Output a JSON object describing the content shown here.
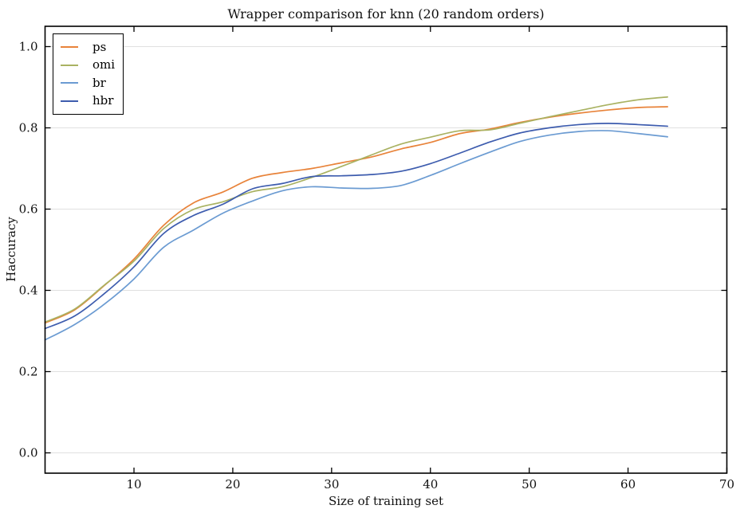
{
  "chart_data": {
    "type": "line",
    "title": "Wrapper comparison for knn (20 random orders)",
    "xlabel": "Size of training set",
    "ylabel": "Haccuracy",
    "xlim": [
      1,
      70
    ],
    "ylim": [
      -0.05,
      1.05
    ],
    "xticks": [
      10,
      20,
      30,
      40,
      50,
      60,
      70
    ],
    "yticks": [
      0.0,
      0.2,
      0.4,
      0.6,
      0.8,
      1.0
    ],
    "grid": "horizontal",
    "legend_position": "upper-left",
    "x": [
      1,
      4,
      7,
      10,
      13,
      16,
      19,
      22,
      25,
      28,
      31,
      34,
      37,
      40,
      43,
      46,
      49,
      52,
      55,
      58,
      61,
      64
    ],
    "series": [
      {
        "name": "ps",
        "color": "#e8833a",
        "values": [
          0.32,
          0.352,
          0.412,
          0.477,
          0.56,
          0.615,
          0.642,
          0.676,
          0.69,
          0.7,
          0.714,
          0.728,
          0.748,
          0.764,
          0.786,
          0.797,
          0.813,
          0.826,
          0.836,
          0.844,
          0.85,
          0.852
        ]
      },
      {
        "name": "omi",
        "color": "#a9b262",
        "values": [
          0.322,
          0.354,
          0.413,
          0.472,
          0.552,
          0.599,
          0.618,
          0.643,
          0.655,
          0.678,
          0.705,
          0.733,
          0.76,
          0.777,
          0.793,
          0.795,
          0.811,
          0.827,
          0.842,
          0.857,
          0.869,
          0.876
        ]
      },
      {
        "name": "br",
        "color": "#6b9bd2",
        "values": [
          0.278,
          0.316,
          0.366,
          0.428,
          0.506,
          0.548,
          0.59,
          0.62,
          0.645,
          0.655,
          0.652,
          0.651,
          0.658,
          0.683,
          0.712,
          0.74,
          0.766,
          0.782,
          0.791,
          0.793,
          0.786,
          0.778
        ]
      },
      {
        "name": "hbr",
        "color": "#3d5cae",
        "values": [
          0.306,
          0.337,
          0.392,
          0.458,
          0.54,
          0.584,
          0.612,
          0.65,
          0.663,
          0.68,
          0.682,
          0.685,
          0.693,
          0.712,
          0.738,
          0.765,
          0.787,
          0.8,
          0.808,
          0.811,
          0.808,
          0.804
        ]
      }
    ],
    "colors": {
      "frame": "#000000",
      "grid": "#e0e0e0",
      "text": "#111111",
      "background": "#ffffff"
    }
  }
}
